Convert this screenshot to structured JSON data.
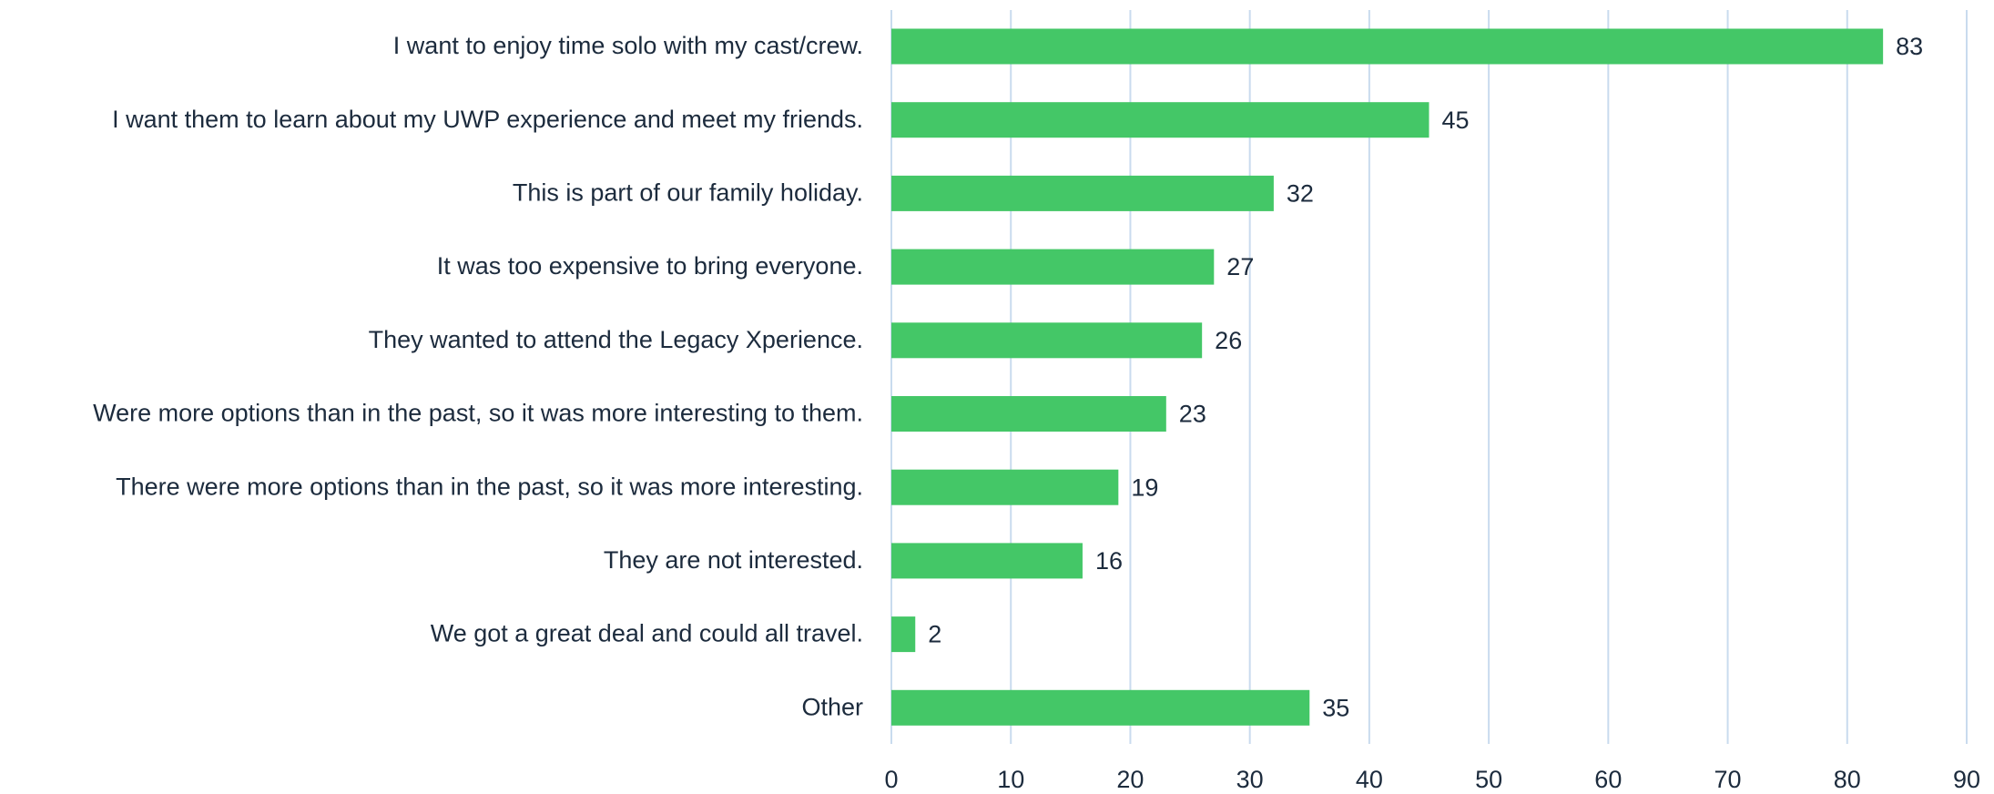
{
  "chart_data": {
    "type": "bar",
    "orientation": "horizontal",
    "categories": [
      "I want to enjoy time solo with my cast/crew.",
      "I want them to learn about my UWP experience and meet my friends.",
      "This is part of our family holiday.",
      "It was too expensive to bring everyone.",
      "They wanted to attend the Legacy Xperience.",
      "Were more options than in the past, so it was more interesting to them.",
      "There were more options than in the past, so it was more interesting.",
      "They are not interested.",
      "We got a great deal and could all travel.",
      "Other"
    ],
    "values": [
      83,
      45,
      32,
      27,
      26,
      23,
      19,
      16,
      2,
      35
    ],
    "color": "#44c767",
    "xlim": [
      0,
      90
    ],
    "xticks": [
      0,
      10,
      20,
      30,
      40,
      50,
      60,
      70,
      80,
      90
    ],
    "grid": true
  }
}
